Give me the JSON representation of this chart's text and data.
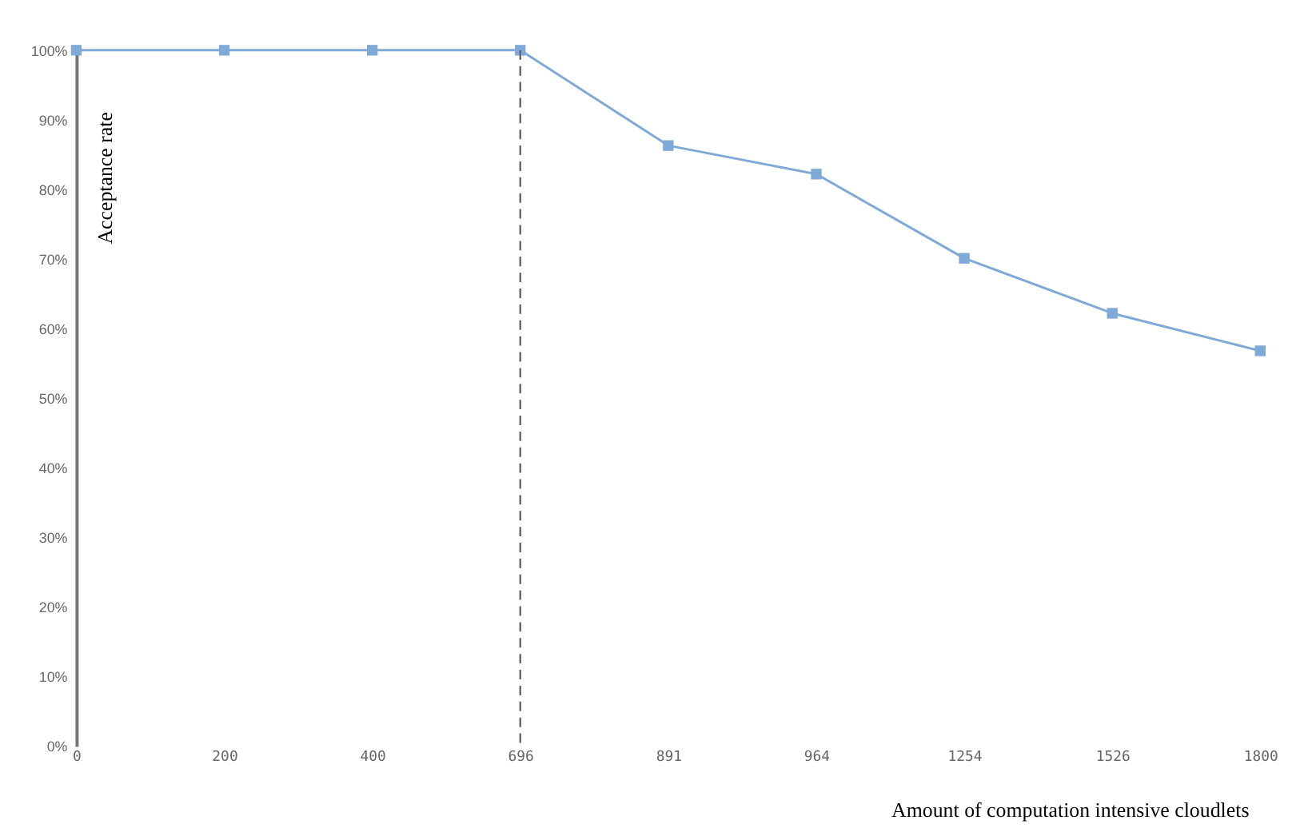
{
  "chart_data": {
    "type": "line",
    "xlabel": "Amount of computation intensive cloudlets",
    "ylabel": "Acceptance rate",
    "categories": [
      "0",
      "200",
      "400",
      "696",
      "891",
      "964",
      "1254",
      "1526",
      "1800"
    ],
    "series": [
      {
        "color": "#7fa9d6",
        "values": [
          100,
          100,
          100,
          100,
          86.3,
          82.2,
          70.1,
          62.2,
          56.8
        ]
      }
    ],
    "ylim": [
      0,
      100
    ],
    "yticks": [
      {
        "value": 0,
        "label": "0%"
      },
      {
        "value": 10,
        "label": "10%"
      },
      {
        "value": 20,
        "label": "20%"
      },
      {
        "value": 30,
        "label": "30%"
      },
      {
        "value": 40,
        "label": "40%"
      },
      {
        "value": 50,
        "label": "50%"
      },
      {
        "value": 60,
        "label": "60%"
      },
      {
        "value": 70,
        "label": "70%"
      },
      {
        "value": 80,
        "label": "80%"
      },
      {
        "value": 90,
        "label": "90%"
      },
      {
        "value": 100,
        "label": "100%"
      }
    ],
    "ref_lines": [
      {
        "axis": "x",
        "value": "696",
        "color": "#666666",
        "line_style": "dashed"
      }
    ],
    "grid": false,
    "marker": "square",
    "line_style": "solid"
  }
}
